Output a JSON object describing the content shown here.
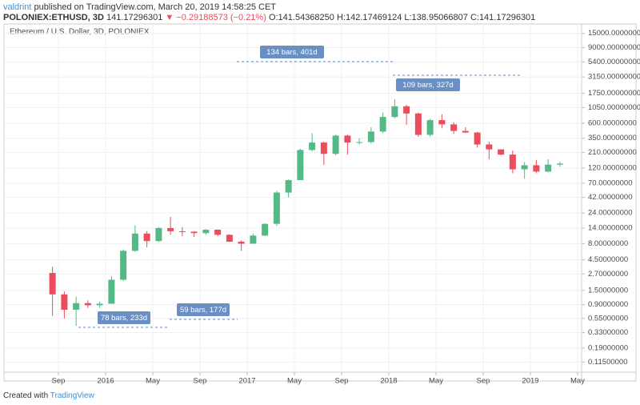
{
  "header": {
    "author": "valdrint",
    "published": "published on TradingView.com, March 20, 2019 14:58:25 CET",
    "symbol": "POLONIEX:ETHUSD, 3D",
    "last": "141.17296301",
    "change": "▼ −0.29188573 (−0.21%)",
    "ohlc": "O:141.54368250 H:142.17469124 L:138.95066807 C:141.17296301"
  },
  "footer": {
    "text": "Created with",
    "brand": "TradingView"
  },
  "chart_data": {
    "type": "candlestick",
    "legend": "Ethereum / U.S. Dollar, 3D, POLONIEX",
    "log_scale": true,
    "grid": true,
    "up_color": "#53b987",
    "down_color": "#eb4d5c",
    "x": [
      "2015-08",
      "2015-09",
      "2015-10",
      "2015-11",
      "2015-12",
      "2016-01",
      "2016-02",
      "2016-03",
      "2016-04",
      "2016-05",
      "2016-06",
      "2016-07",
      "2016-08",
      "2016-09",
      "2016-10",
      "2016-11",
      "2016-12",
      "2017-01",
      "2017-02",
      "2017-03",
      "2017-04",
      "2017-05",
      "2017-06",
      "2017-07",
      "2017-08",
      "2017-09",
      "2017-10",
      "2017-11",
      "2017-12",
      "2018-01",
      "2018-02",
      "2018-03",
      "2018-04",
      "2018-05",
      "2018-06",
      "2018-07",
      "2018-08",
      "2018-09",
      "2018-10",
      "2018-11",
      "2018-12",
      "2019-01",
      "2019-02",
      "2019-03"
    ],
    "open": [
      2.8,
      1.3,
      0.75,
      0.95,
      0.88,
      0.93,
      2.2,
      6.2,
      11.5,
      8.8,
      14,
      12.5,
      12.3,
      11.7,
      13.2,
      11.0,
      8.6,
      8.0,
      10.7,
      16.3,
      50,
      78,
      230,
      300,
      200,
      385,
      300,
      305,
      445,
      750,
      1100,
      850,
      395,
      670,
      575,
      455,
      430,
      280,
      235,
      195,
      115,
      133,
      106,
      136
    ],
    "high": [
      3.5,
      1.45,
      1.2,
      1.05,
      1.0,
      2.5,
      6.5,
      15.5,
      12.5,
      14.5,
      21,
      14.5,
      12.5,
      13.5,
      13.4,
      11.2,
      9.0,
      11.5,
      16.5,
      53,
      80,
      240,
      420,
      310,
      400,
      400,
      350,
      520,
      880,
      1430,
      1160,
      880,
      700,
      830,
      620,
      520,
      440,
      310,
      235,
      225,
      150,
      160,
      165,
      150
    ],
    "low": [
      0.6,
      0.55,
      0.42,
      0.8,
      0.8,
      0.93,
      2.1,
      6.0,
      7.0,
      8.5,
      11,
      10.5,
      10.2,
      11.0,
      10.5,
      8.5,
      6.2,
      8.0,
      10.5,
      15,
      42,
      78,
      220,
      135,
      190,
      195,
      280,
      290,
      420,
      720,
      570,
      370,
      370,
      500,
      410,
      420,
      250,
      165,
      190,
      100,
      82,
      100,
      103,
      126
    ],
    "close": [
      1.3,
      0.75,
      0.95,
      0.88,
      0.93,
      2.2,
      6.2,
      11.5,
      8.8,
      14,
      12.5,
      12.3,
      11.7,
      13.2,
      11.0,
      8.6,
      8.0,
      10.7,
      16.3,
      50,
      78,
      230,
      300,
      200,
      385,
      300,
      305,
      445,
      750,
      1100,
      850,
      395,
      670,
      575,
      455,
      430,
      280,
      235,
      195,
      115,
      133,
      106,
      136,
      141.17296301
    ],
    "xlim": [
      "2015-05",
      "2019-05"
    ],
    "xticks": [
      {
        "value": "2015-09",
        "label": "Sep"
      },
      {
        "value": "2016-01",
        "label": "2016"
      },
      {
        "value": "2016-05",
        "label": "May"
      },
      {
        "value": "2016-09",
        "label": "Sep"
      },
      {
        "value": "2017-01",
        "label": "2017"
      },
      {
        "value": "2017-05",
        "label": "May"
      },
      {
        "value": "2017-09",
        "label": "Sep"
      },
      {
        "value": "2018-01",
        "label": "2018"
      },
      {
        "value": "2018-05",
        "label": "May"
      },
      {
        "value": "2018-09",
        "label": "Sep"
      },
      {
        "value": "2019-01",
        "label": "2019"
      },
      {
        "value": "2019-05",
        "label": "May"
      }
    ],
    "ylim": [
      0.08,
      21000
    ],
    "yticks": [
      {
        "value": 15000,
        "label": "15000.00000000"
      },
      {
        "value": 9000,
        "label": "9000.00000000"
      },
      {
        "value": 5400,
        "label": "5400.00000000"
      },
      {
        "value": 3150,
        "label": "3150.00000000"
      },
      {
        "value": 1750,
        "label": "1750.00000000"
      },
      {
        "value": 1050,
        "label": "1050.00000000"
      },
      {
        "value": 600,
        "label": "600.00000000"
      },
      {
        "value": 350,
        "label": "350.00000000"
      },
      {
        "value": 210,
        "label": "210.00000000"
      },
      {
        "value": 120,
        "label": "120.00000000"
      },
      {
        "value": 70,
        "label": "70.00000000"
      },
      {
        "value": 42,
        "label": "42.00000000"
      },
      {
        "value": 24,
        "label": "24.00000000"
      },
      {
        "value": 14,
        "label": "14.00000000"
      },
      {
        "value": 8,
        "label": "8.00000000"
      },
      {
        "value": 4.5,
        "label": "4.50000000"
      },
      {
        "value": 2.7,
        "label": "2.70000000"
      },
      {
        "value": 1.5,
        "label": "1.50000000"
      },
      {
        "value": 0.9,
        "label": "0.90000000"
      },
      {
        "value": 0.55,
        "label": "0.55000000"
      },
      {
        "value": 0.33,
        "label": "0.33000000"
      },
      {
        "value": 0.19,
        "label": "0.19000000"
      },
      {
        "value": 0.115,
        "label": "0.11500000"
      }
    ],
    "annotations": [
      "134 bars, 401d",
      "109 bars, 327d",
      "78 bars, 233d",
      "59 bars, 177d"
    ]
  }
}
